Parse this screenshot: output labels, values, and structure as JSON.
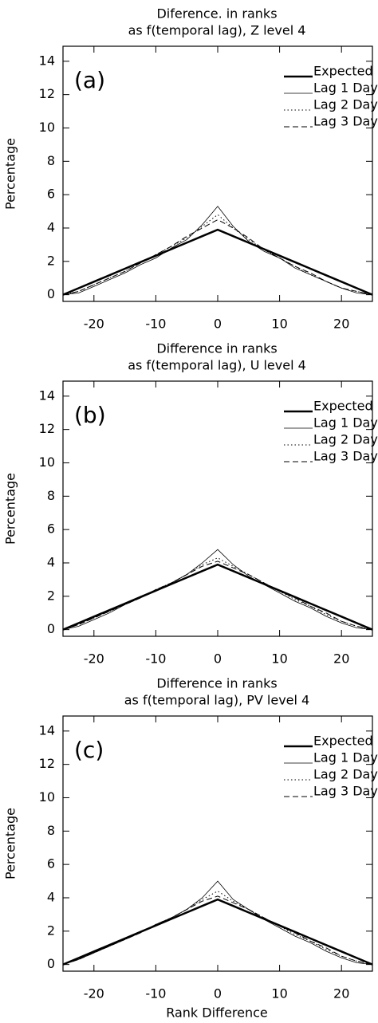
{
  "chart_data": [
    {
      "type": "line",
      "title": [
        "Diference. in ranks",
        "as f(temporal lag), Z level 4"
      ],
      "annotation": "(a)",
      "ylabel": "Percentage",
      "x": [
        -25,
        -22.5,
        -20,
        -17.5,
        -15,
        -12.5,
        -10,
        -7.5,
        -5,
        -2.5,
        0,
        2.5,
        5,
        7.5,
        10,
        12.5,
        15,
        17.5,
        20,
        22.5,
        25
      ],
      "series": [
        {
          "name": "Expected",
          "color": "#000000",
          "linestyle": "solid",
          "linewidth": 2.5,
          "values": [
            0,
            0.39,
            0.78,
            1.17,
            1.56,
            1.95,
            2.34,
            2.73,
            3.12,
            3.51,
            3.9,
            3.51,
            3.12,
            2.73,
            2.34,
            1.95,
            1.56,
            1.17,
            0.78,
            0.39,
            0
          ]
        },
        {
          "name": "Lag 1 Day",
          "color": "#000000",
          "linestyle": "solid",
          "linewidth": 0.8,
          "values": [
            0,
            0.1,
            0.5,
            0.9,
            1.3,
            1.8,
            2.2,
            2.8,
            3.3,
            4.2,
            5.3,
            4.1,
            3.2,
            2.6,
            2.2,
            1.6,
            1.2,
            0.8,
            0.4,
            0.1,
            0
          ]
        },
        {
          "name": "Lag 2 Day",
          "color": "#000000",
          "linestyle": "dotted",
          "linewidth": 1,
          "values": [
            0,
            0.2,
            0.6,
            1.0,
            1.4,
            1.9,
            2.4,
            2.9,
            3.4,
            4.1,
            4.8,
            4.0,
            3.3,
            2.7,
            2.2,
            1.7,
            1.2,
            0.8,
            0.4,
            0.2,
            0
          ]
        },
        {
          "name": "Lag 3 Day",
          "color": "#000000",
          "linestyle": "dashed",
          "linewidth": 1,
          "values": [
            0,
            0.2,
            0.6,
            1.0,
            1.4,
            1.9,
            2.4,
            2.9,
            3.5,
            4.0,
            4.5,
            4.0,
            3.4,
            2.7,
            2.2,
            1.7,
            1.3,
            0.8,
            0.4,
            0.2,
            0
          ]
        }
      ],
      "xlim": [
        -25,
        25
      ],
      "ylim": [
        -0.4,
        14.9
      ],
      "xticks": [
        -20,
        -10,
        0,
        10,
        20
      ],
      "yticks": [
        0,
        2,
        4,
        6,
        8,
        10,
        12,
        14
      ],
      "legend": "upper right"
    },
    {
      "type": "line",
      "title": [
        "Difference in ranks",
        "as f(temporal lag), U level 4"
      ],
      "annotation": "(b)",
      "ylabel": "Percentage",
      "x": [
        -25,
        -22.5,
        -20,
        -17.5,
        -15,
        -12.5,
        -10,
        -7.5,
        -5,
        -2.5,
        0,
        2.5,
        5,
        7.5,
        10,
        12.5,
        15,
        17.5,
        20,
        22.5,
        25
      ],
      "series": [
        {
          "name": "Expected",
          "color": "#000000",
          "linestyle": "solid",
          "linewidth": 2.5,
          "values": [
            0,
            0.39,
            0.78,
            1.17,
            1.56,
            1.95,
            2.34,
            2.73,
            3.12,
            3.51,
            3.9,
            3.51,
            3.12,
            2.73,
            2.34,
            1.95,
            1.56,
            1.17,
            0.78,
            0.39,
            0
          ]
        },
        {
          "name": "Lag 1 Day",
          "color": "#000000",
          "linestyle": "solid",
          "linewidth": 0.8,
          "values": [
            0,
            0.2,
            0.6,
            1.0,
            1.5,
            1.9,
            2.3,
            2.8,
            3.3,
            4.0,
            4.8,
            3.9,
            3.2,
            2.7,
            2.2,
            1.7,
            1.3,
            0.8,
            0.4,
            0.1,
            0
          ]
        },
        {
          "name": "Lag 2 Day",
          "color": "#000000",
          "linestyle": "dotted",
          "linewidth": 1,
          "values": [
            0,
            0.3,
            0.7,
            1.1,
            1.5,
            1.9,
            2.4,
            2.8,
            3.3,
            3.9,
            4.3,
            3.8,
            3.3,
            2.8,
            2.3,
            1.8,
            1.4,
            0.9,
            0.5,
            0.2,
            0
          ]
        },
        {
          "name": "Lag 3 Day",
          "color": "#000000",
          "linestyle": "dashed",
          "linewidth": 1,
          "values": [
            0,
            0.3,
            0.7,
            1.1,
            1.5,
            1.9,
            2.4,
            2.8,
            3.3,
            3.8,
            4.1,
            3.7,
            3.3,
            2.8,
            2.3,
            1.9,
            1.4,
            1.0,
            0.5,
            0.2,
            0
          ]
        }
      ],
      "xlim": [
        -25,
        25
      ],
      "ylim": [
        -0.4,
        14.9
      ],
      "xticks": [
        -20,
        -10,
        0,
        10,
        20
      ],
      "yticks": [
        0,
        2,
        4,
        6,
        8,
        10,
        12,
        14
      ],
      "legend": "upper right"
    },
    {
      "type": "line",
      "title": [
        "Difference in ranks",
        "as f(temporal lag), PV level 4"
      ],
      "annotation": "(c)",
      "ylabel": "Percentage",
      "xlabel": "Rank Difference",
      "x": [
        -25,
        -22.5,
        -20,
        -17.5,
        -15,
        -12.5,
        -10,
        -7.5,
        -5,
        -2.5,
        0,
        2.5,
        5,
        7.5,
        10,
        12.5,
        15,
        17.5,
        20,
        22.5,
        25
      ],
      "series": [
        {
          "name": "Expected",
          "color": "#000000",
          "linestyle": "solid",
          "linewidth": 2.5,
          "values": [
            0,
            0.39,
            0.78,
            1.17,
            1.56,
            1.95,
            2.34,
            2.73,
            3.12,
            3.51,
            3.9,
            3.51,
            3.12,
            2.73,
            2.34,
            1.95,
            1.56,
            1.17,
            0.78,
            0.39,
            0
          ]
        },
        {
          "name": "Lag 1 Day",
          "color": "#000000",
          "linestyle": "solid",
          "linewidth": 0.8,
          "values": [
            0,
            0.3,
            0.7,
            1.1,
            1.5,
            1.9,
            2.4,
            2.8,
            3.3,
            4.0,
            5.0,
            3.9,
            3.3,
            2.7,
            2.2,
            1.7,
            1.3,
            0.8,
            0.4,
            0.1,
            0
          ]
        },
        {
          "name": "Lag 2 Day",
          "color": "#000000",
          "linestyle": "dotted",
          "linewidth": 1,
          "values": [
            0,
            0.3,
            0.7,
            1.1,
            1.5,
            1.9,
            2.4,
            2.8,
            3.3,
            3.9,
            4.4,
            3.8,
            3.3,
            2.8,
            2.3,
            1.8,
            1.4,
            0.9,
            0.5,
            0.2,
            0
          ]
        },
        {
          "name": "Lag 3 Day",
          "color": "#000000",
          "linestyle": "dashed",
          "linewidth": 1,
          "values": [
            0,
            0.3,
            0.7,
            1.1,
            1.5,
            1.9,
            2.4,
            2.8,
            3.3,
            3.8,
            4.1,
            3.7,
            3.3,
            2.8,
            2.3,
            1.9,
            1.4,
            1.0,
            0.5,
            0.2,
            0
          ]
        }
      ],
      "xlim": [
        -25,
        25
      ],
      "ylim": [
        -0.4,
        14.9
      ],
      "xticks": [
        -20,
        -10,
        0,
        10,
        20
      ],
      "yticks": [
        0,
        2,
        4,
        6,
        8,
        10,
        12,
        14
      ],
      "legend": "upper right"
    }
  ]
}
